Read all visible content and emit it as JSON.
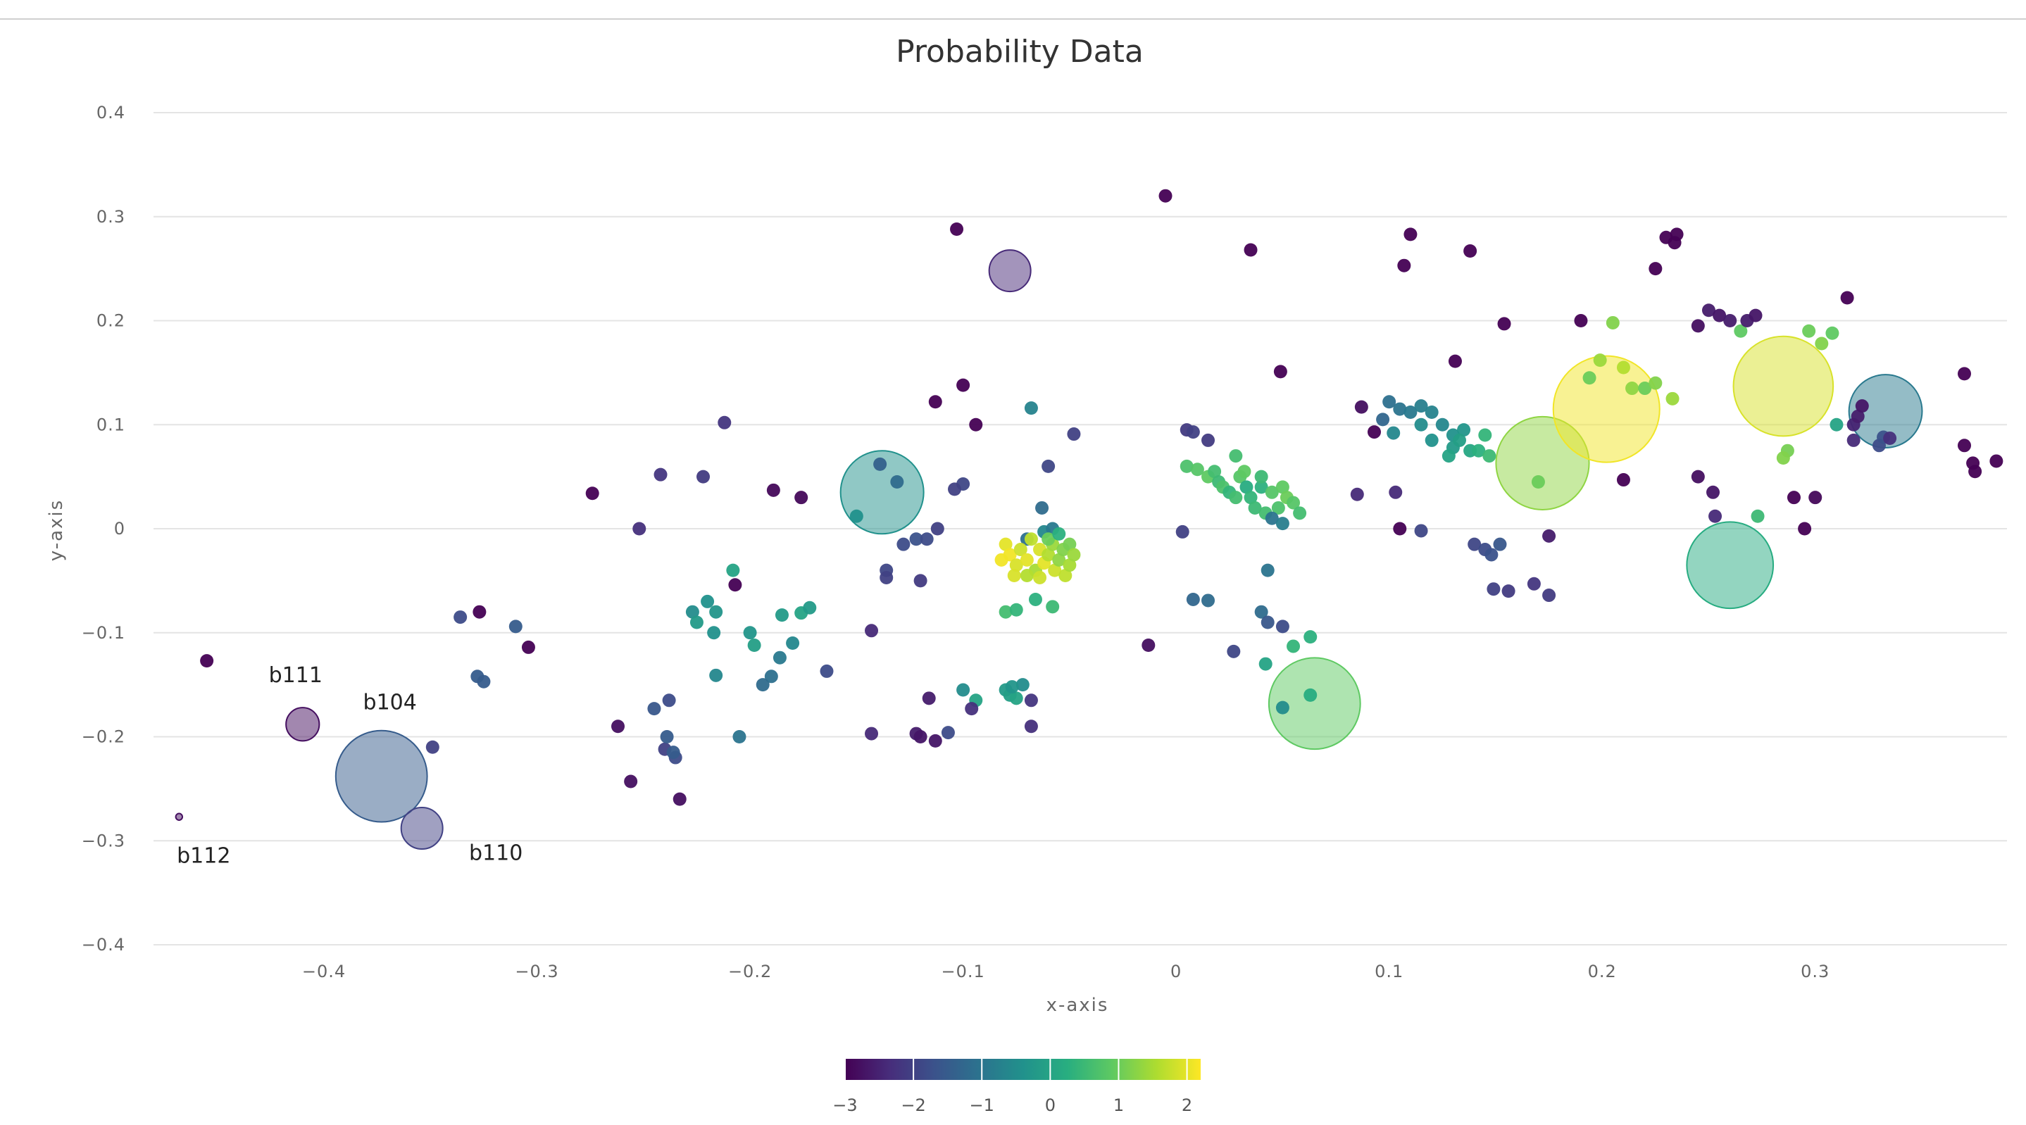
{
  "chart_data": {
    "type": "scatter",
    "title": "Probability Data",
    "xlabel": "x-axis",
    "ylabel": "y-axis",
    "xlim": [
      -0.48,
      0.39
    ],
    "ylim": [
      -0.4,
      0.4
    ],
    "xticks": [
      -0.4,
      -0.3,
      -0.2,
      -0.1,
      0,
      0.1,
      0.2,
      0.3
    ],
    "xtick_labels": [
      "−0.4",
      "−0.3",
      "−0.2",
      "−0.1",
      "0",
      "0.1",
      "0.2",
      "0.3"
    ],
    "yticks": [
      0.4,
      0.3,
      0.2,
      0.1,
      0,
      -0.1,
      -0.2,
      -0.3,
      -0.4
    ],
    "ytick_labels": [
      "0.4",
      "0.3",
      "0.2",
      "0.1",
      "0",
      "−0.1",
      "−0.2",
      "−0.3",
      "−0.4"
    ],
    "grid": true,
    "colorscale": {
      "name": "Viridis",
      "stops": [
        "#440154",
        "#472d7b",
        "#3b528b",
        "#2c728e",
        "#21918c",
        "#28ae80",
        "#5ec962",
        "#addc30",
        "#fde725"
      ],
      "range": [
        -3,
        2.2
      ],
      "ticks": [
        -3,
        -2,
        -1,
        0,
        1,
        2
      ],
      "tick_labels": [
        "−3",
        "−2",
        "−1",
        "0",
        "1",
        "2"
      ]
    },
    "bubbles": [
      {
        "x": -0.078,
        "y": 0.248,
        "size": 0.25,
        "c": -2.4
      },
      {
        "x": -0.138,
        "y": 0.035,
        "size": 0.5,
        "c": -0.4
      },
      {
        "x": -0.373,
        "y": -0.238,
        "size": 0.55,
        "c": -1.5
      },
      {
        "x": -0.354,
        "y": -0.288,
        "size": 0.25,
        "c": -2.0
      },
      {
        "x": -0.41,
        "y": -0.188,
        "size": 0.2,
        "c": -2.8
      },
      {
        "x": -0.468,
        "y": -0.277,
        "size": 0.04,
        "c": -2.8
      },
      {
        "x": 0.065,
        "y": -0.168,
        "size": 0.55,
        "c": 0.9
      },
      {
        "x": 0.172,
        "y": 0.063,
        "size": 0.56,
        "c": 1.3
      },
      {
        "x": 0.202,
        "y": 0.115,
        "size": 0.64,
        "c": 2.1
      },
      {
        "x": 0.285,
        "y": 0.137,
        "size": 0.6,
        "c": 1.9
      },
      {
        "x": 0.333,
        "y": 0.113,
        "size": 0.44,
        "c": -0.9
      },
      {
        "x": 0.26,
        "y": -0.035,
        "size": 0.52,
        "c": 0.2
      }
    ],
    "bubble_labels": [
      {
        "text": "b111",
        "x": -0.41,
        "y": -0.188
      },
      {
        "text": "b104",
        "x": -0.373,
        "y": -0.238
      },
      {
        "text": "b110",
        "x": -0.354,
        "y": -0.288
      },
      {
        "text": "b112",
        "x": -0.468,
        "y": -0.277
      }
    ],
    "points": [
      [
        -0.455,
        -0.127,
        -3
      ],
      [
        -0.327,
        -0.08,
        -3
      ],
      [
        -0.304,
        -0.114,
        -3
      ],
      [
        -0.336,
        -0.085,
        -1.8
      ],
      [
        -0.31,
        -0.094,
        -1.5
      ],
      [
        -0.328,
        -0.142,
        -1.5
      ],
      [
        -0.325,
        -0.147,
        -1.5
      ],
      [
        -0.349,
        -0.21,
        -2.0
      ],
      [
        -0.274,
        0.034,
        -3
      ],
      [
        -0.252,
        0.0,
        -2.3
      ],
      [
        -0.242,
        0.052,
        -2.2
      ],
      [
        -0.262,
        -0.19,
        -2.8
      ],
      [
        -0.256,
        -0.243,
        -2.8
      ],
      [
        -0.233,
        -0.26,
        -2.8
      ],
      [
        -0.24,
        -0.212,
        -2.0
      ],
      [
        -0.235,
        -0.22,
        -1.8
      ],
      [
        -0.238,
        -0.165,
        -1.8
      ],
      [
        -0.245,
        -0.173,
        -1.6
      ],
      [
        -0.239,
        -0.2,
        -1.5
      ],
      [
        -0.236,
        -0.215,
        -1.5
      ],
      [
        -0.212,
        0.102,
        -2.2
      ],
      [
        -0.222,
        0.05,
        -2.1
      ],
      [
        -0.189,
        0.037,
        -2.9
      ],
      [
        -0.176,
        0.03,
        -2.9
      ],
      [
        -0.207,
        -0.054,
        -3
      ],
      [
        -0.227,
        -0.08,
        -0.5
      ],
      [
        -0.22,
        -0.07,
        -0.4
      ],
      [
        -0.216,
        -0.08,
        -0.3
      ],
      [
        -0.225,
        -0.09,
        -0.2
      ],
      [
        -0.217,
        -0.1,
        -0.4
      ],
      [
        -0.208,
        -0.04,
        0.0
      ],
      [
        -0.2,
        -0.1,
        -0.3
      ],
      [
        -0.198,
        -0.112,
        -0.1
      ],
      [
        -0.216,
        -0.141,
        -0.6
      ],
      [
        -0.205,
        -0.2,
        -1.0
      ],
      [
        -0.185,
        -0.083,
        -0.2
      ],
      [
        -0.176,
        -0.081,
        0.0
      ],
      [
        -0.172,
        -0.076,
        -0.2
      ],
      [
        -0.18,
        -0.11,
        -0.6
      ],
      [
        -0.186,
        -0.124,
        -0.9
      ],
      [
        -0.19,
        -0.142,
        -1.1
      ],
      [
        -0.194,
        -0.15,
        -1.2
      ],
      [
        -0.164,
        -0.137,
        -1.8
      ],
      [
        -0.143,
        -0.098,
        -2.4
      ],
      [
        -0.143,
        -0.197,
        -2.4
      ],
      [
        -0.116,
        -0.163,
        -2.6
      ],
      [
        -0.122,
        -0.197,
        -2.6
      ],
      [
        -0.12,
        -0.2,
        -2.7
      ],
      [
        -0.113,
        -0.204,
        -2.7
      ],
      [
        -0.107,
        -0.196,
        -1.8
      ],
      [
        -0.136,
        -0.04,
        -1.9
      ],
      [
        -0.136,
        -0.047,
        -2.0
      ],
      [
        -0.131,
        0.045,
        -1.2
      ],
      [
        -0.139,
        0.062,
        -1.4
      ],
      [
        -0.15,
        0.012,
        -0.4
      ],
      [
        -0.12,
        -0.05,
        -2.1
      ],
      [
        -0.128,
        -0.015,
        -1.8
      ],
      [
        -0.122,
        -0.01,
        -1.7
      ],
      [
        -0.117,
        -0.01,
        -1.8
      ],
      [
        -0.112,
        0.0,
        -2.0
      ],
      [
        -0.113,
        0.122,
        -3
      ],
      [
        -0.1,
        0.138,
        -3
      ],
      [
        -0.094,
        0.1,
        -3
      ],
      [
        -0.103,
        0.288,
        -3
      ],
      [
        -0.1,
        0.043,
        -1.9
      ],
      [
        -0.104,
        0.038,
        -2.0
      ],
      [
        -0.068,
        0.116,
        -0.7
      ],
      [
        -0.048,
        0.091,
        -2.0
      ],
      [
        -0.06,
        0.06,
        -1.9
      ],
      [
        -0.063,
        0.02,
        -1.2
      ],
      [
        -0.1,
        -0.155,
        -0.5
      ],
      [
        -0.094,
        -0.165,
        0.0
      ],
      [
        -0.096,
        -0.173,
        -2.3
      ],
      [
        -0.08,
        -0.155,
        -0.2
      ],
      [
        -0.078,
        -0.16,
        -0.1
      ],
      [
        -0.075,
        -0.163,
        0.0
      ],
      [
        -0.072,
        -0.15,
        -0.5
      ],
      [
        -0.077,
        -0.152,
        -0.3
      ],
      [
        -0.068,
        -0.165,
        -2.2
      ],
      [
        -0.068,
        -0.19,
        -2.3
      ],
      [
        -0.08,
        -0.08,
        0.6
      ],
      [
        -0.075,
        -0.078,
        0.4
      ],
      [
        -0.066,
        -0.068,
        0.3
      ],
      [
        -0.058,
        -0.075,
        0.5
      ],
      [
        -0.07,
        -0.01,
        -1.1
      ],
      [
        -0.062,
        -0.003,
        -0.6
      ],
      [
        -0.058,
        0.0,
        -0.9
      ],
      [
        -0.08,
        -0.015,
        2.0
      ],
      [
        -0.078,
        -0.025,
        2.1
      ],
      [
        -0.075,
        -0.035,
        1.9
      ],
      [
        -0.073,
        -0.02,
        1.8
      ],
      [
        -0.07,
        -0.03,
        2.0
      ],
      [
        -0.068,
        -0.01,
        1.7
      ],
      [
        -0.066,
        -0.04,
        1.5
      ],
      [
        -0.064,
        -0.02,
        1.9
      ],
      [
        -0.062,
        -0.033,
        2.0
      ],
      [
        -0.06,
        -0.025,
        1.6
      ],
      [
        -0.058,
        -0.015,
        1.4
      ],
      [
        -0.057,
        -0.04,
        1.8
      ],
      [
        -0.055,
        -0.03,
        1.3
      ],
      [
        -0.053,
        -0.02,
        1.2
      ],
      [
        -0.052,
        -0.045,
        1.7
      ],
      [
        -0.05,
        -0.035,
        1.5
      ],
      [
        -0.05,
        -0.015,
        1.1
      ],
      [
        -0.048,
        -0.025,
        1.4
      ],
      [
        -0.076,
        -0.045,
        1.9
      ],
      [
        -0.07,
        -0.045,
        1.6
      ],
      [
        -0.064,
        -0.047,
        1.8
      ],
      [
        -0.082,
        -0.03,
        2.1
      ],
      [
        -0.06,
        -0.01,
        1.0
      ],
      [
        -0.055,
        -0.005,
        0.3
      ],
      [
        -0.005,
        0.32,
        -3
      ],
      [
        -0.013,
        -0.112,
        -2.8
      ],
      [
        0.035,
        0.268,
        -3
      ],
      [
        0.049,
        0.151,
        -3
      ],
      [
        0.005,
        0.095,
        -2.1
      ],
      [
        0.008,
        0.093,
        -2.0
      ],
      [
        0.015,
        0.085,
        -2.1
      ],
      [
        0.003,
        -0.003,
        -2.0
      ],
      [
        0.008,
        -0.068,
        -1.3
      ],
      [
        0.015,
        -0.069,
        -1.2
      ],
      [
        0.027,
        -0.118,
        -1.9
      ],
      [
        0.005,
        0.06,
        0.7
      ],
      [
        0.01,
        0.057,
        0.8
      ],
      [
        0.015,
        0.05,
        0.9
      ],
      [
        0.018,
        0.055,
        0.6
      ],
      [
        0.02,
        0.045,
        0.5
      ],
      [
        0.022,
        0.04,
        0.7
      ],
      [
        0.025,
        0.035,
        0.4
      ],
      [
        0.028,
        0.03,
        0.6
      ],
      [
        0.03,
        0.05,
        0.8
      ],
      [
        0.033,
        0.04,
        0.2
      ],
      [
        0.035,
        0.03,
        0.4
      ],
      [
        0.037,
        0.02,
        0.5
      ],
      [
        0.04,
        0.04,
        0.3
      ],
      [
        0.042,
        0.015,
        0.6
      ],
      [
        0.045,
        0.035,
        0.8
      ],
      [
        0.048,
        0.02,
        0.7
      ],
      [
        0.05,
        0.04,
        0.9
      ],
      [
        0.052,
        0.03,
        1.0
      ],
      [
        0.055,
        0.025,
        0.8
      ],
      [
        0.058,
        0.015,
        0.6
      ],
      [
        0.04,
        0.05,
        0.5
      ],
      [
        0.045,
        0.01,
        -1.0
      ],
      [
        0.05,
        0.005,
        -0.8
      ],
      [
        0.032,
        0.055,
        0.9
      ],
      [
        0.028,
        0.07,
        0.6
      ],
      [
        0.043,
        -0.04,
        -1.0
      ],
      [
        0.04,
        -0.08,
        -1.2
      ],
      [
        0.043,
        -0.09,
        -1.6
      ],
      [
        0.05,
        -0.094,
        -1.8
      ],
      [
        0.042,
        -0.13,
        0.0
      ],
      [
        0.05,
        -0.172,
        -0.5
      ],
      [
        0.055,
        -0.113,
        0.4
      ],
      [
        0.063,
        -0.104,
        0.3
      ],
      [
        0.063,
        -0.16,
        0.2
      ],
      [
        0.085,
        0.033,
        -2.4
      ],
      [
        0.103,
        0.035,
        -2.4
      ],
      [
        0.087,
        0.117,
        -2.8
      ],
      [
        0.093,
        0.093,
        -3
      ],
      [
        0.097,
        0.105,
        -1.3
      ],
      [
        0.1,
        0.122,
        -1.1
      ],
      [
        0.105,
        0.115,
        -1.0
      ],
      [
        0.11,
        0.112,
        -0.9
      ],
      [
        0.115,
        0.118,
        -0.8
      ],
      [
        0.12,
        0.112,
        -0.7
      ],
      [
        0.125,
        0.1,
        -0.6
      ],
      [
        0.13,
        0.09,
        -0.4
      ],
      [
        0.135,
        0.095,
        -0.3
      ],
      [
        0.102,
        0.092,
        -0.6
      ],
      [
        0.115,
        0.1,
        -0.5
      ],
      [
        0.12,
        0.085,
        -0.4
      ],
      [
        0.13,
        0.078,
        -0.2
      ],
      [
        0.128,
        0.07,
        0.0
      ],
      [
        0.133,
        0.085,
        -0.1
      ],
      [
        0.138,
        0.075,
        0.1
      ],
      [
        0.142,
        0.075,
        0.3
      ],
      [
        0.147,
        0.07,
        0.5
      ],
      [
        0.145,
        0.09,
        0.4
      ],
      [
        0.11,
        0.283,
        -3
      ],
      [
        0.107,
        0.253,
        -3
      ],
      [
        0.138,
        0.267,
        -3
      ],
      [
        0.131,
        0.161,
        -3
      ],
      [
        0.154,
        0.197,
        -3
      ],
      [
        0.105,
        0.0,
        -3
      ],
      [
        0.115,
        -0.002,
        -1.9
      ],
      [
        0.14,
        -0.015,
        -1.9
      ],
      [
        0.145,
        -0.02,
        -1.8
      ],
      [
        0.148,
        -0.025,
        -1.7
      ],
      [
        0.152,
        -0.015,
        -1.6
      ],
      [
        0.149,
        -0.058,
        -2.0
      ],
      [
        0.156,
        -0.06,
        -2.1
      ],
      [
        0.168,
        -0.053,
        -2.2
      ],
      [
        0.175,
        -0.064,
        -2.1
      ],
      [
        0.19,
        0.2,
        -3
      ],
      [
        0.194,
        0.145,
        1.0
      ],
      [
        0.199,
        0.162,
        1.4
      ],
      [
        0.205,
        0.198,
        1.2
      ],
      [
        0.21,
        0.155,
        1.6
      ],
      [
        0.214,
        0.135,
        1.3
      ],
      [
        0.22,
        0.135,
        1.0
      ],
      [
        0.225,
        0.14,
        1.2
      ],
      [
        0.233,
        0.125,
        1.4
      ],
      [
        0.21,
        0.047,
        -3
      ],
      [
        0.17,
        0.045,
        1.0
      ],
      [
        0.175,
        -0.007,
        -2.6
      ],
      [
        0.225,
        0.25,
        -3
      ],
      [
        0.23,
        0.28,
        -3
      ],
      [
        0.234,
        0.275,
        -3
      ],
      [
        0.235,
        0.283,
        -3
      ],
      [
        0.245,
        0.195,
        -2.8
      ],
      [
        0.25,
        0.21,
        -2.6
      ],
      [
        0.255,
        0.205,
        -2.7
      ],
      [
        0.26,
        0.2,
        -2.6
      ],
      [
        0.265,
        0.19,
        0.9
      ],
      [
        0.268,
        0.2,
        -2.6
      ],
      [
        0.272,
        0.205,
        -2.7
      ],
      [
        0.245,
        0.05,
        -2.8
      ],
      [
        0.252,
        0.035,
        -2.7
      ],
      [
        0.253,
        0.012,
        -2.4
      ],
      [
        0.273,
        0.012,
        0.5
      ],
      [
        0.287,
        0.075,
        1.1
      ],
      [
        0.285,
        0.068,
        1.2
      ],
      [
        0.29,
        0.03,
        -3
      ],
      [
        0.297,
        0.19,
        1.0
      ],
      [
        0.303,
        0.178,
        1.2
      ],
      [
        0.308,
        0.188,
        0.9
      ],
      [
        0.3,
        0.03,
        -2.9
      ],
      [
        0.295,
        0.0,
        -3
      ],
      [
        0.315,
        0.222,
        -3
      ],
      [
        0.31,
        0.1,
        0.0
      ],
      [
        0.318,
        0.1,
        -2.5
      ],
      [
        0.32,
        0.108,
        -2.6
      ],
      [
        0.322,
        0.118,
        -2.7
      ],
      [
        0.33,
        0.08,
        -1.8
      ],
      [
        0.332,
        0.088,
        -1.7
      ],
      [
        0.335,
        0.087,
        -2.3
      ],
      [
        0.318,
        0.085,
        -2.4
      ],
      [
        0.37,
        0.149,
        -3
      ],
      [
        0.37,
        0.08,
        -3
      ],
      [
        0.374,
        0.063,
        -3
      ],
      [
        0.375,
        0.055,
        -3
      ],
      [
        0.385,
        0.065,
        -3
      ]
    ]
  }
}
